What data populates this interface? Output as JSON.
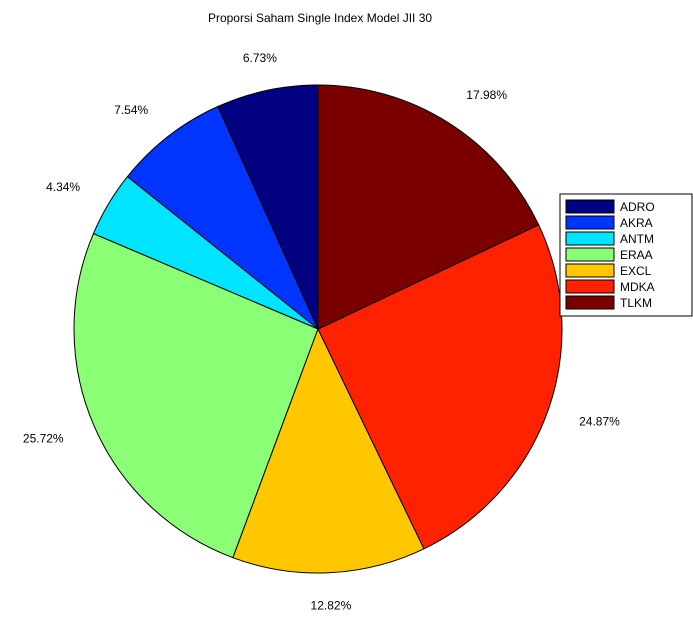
{
  "chart_data": {
    "type": "pie",
    "title": "Proporsi Saham Single Index Model JII 30",
    "legend_position": "right",
    "slices": [
      {
        "label": "ADRO",
        "value": 6.73,
        "value_label": "6.73%",
        "color": "#000080"
      },
      {
        "label": "AKRA",
        "value": 7.54,
        "value_label": "7.54%",
        "color": "#0035ff"
      },
      {
        "label": "ANTM",
        "value": 4.34,
        "value_label": "4.34%",
        "color": "#00e4ff"
      },
      {
        "label": "ERAA",
        "value": 25.72,
        "value_label": "25.72%",
        "color": "#8aff76"
      },
      {
        "label": "EXCL",
        "value": 12.82,
        "value_label": "12.82%",
        "color": "#ffc700"
      },
      {
        "label": "MDKA",
        "value": 24.87,
        "value_label": "24.87%",
        "color": "#ff2200"
      },
      {
        "label": "TLKM",
        "value": 17.98,
        "value_label": "17.98%",
        "color": "#7a0000"
      }
    ]
  }
}
